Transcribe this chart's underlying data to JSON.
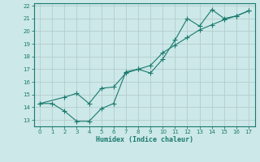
{
  "line1_x": [
    0,
    1,
    2,
    3,
    4,
    5,
    6,
    7,
    8,
    9,
    10,
    11,
    12,
    13,
    14,
    15,
    16,
    17
  ],
  "line1_y": [
    14.3,
    14.3,
    13.7,
    12.9,
    12.9,
    13.9,
    14.3,
    16.8,
    17.0,
    16.7,
    17.8,
    19.3,
    21.0,
    20.4,
    21.7,
    21.0,
    21.2,
    21.6
  ],
  "line2_x": [
    0,
    2,
    3,
    4,
    5,
    6,
    7,
    8,
    9,
    10,
    11,
    12,
    13,
    14,
    15,
    16,
    17
  ],
  "line2_y": [
    14.3,
    14.8,
    15.1,
    14.3,
    15.5,
    15.6,
    16.7,
    17.0,
    17.3,
    18.3,
    18.9,
    19.5,
    20.1,
    20.5,
    20.9,
    21.2,
    21.6
  ],
  "line_color": "#1a7a6e",
  "markersize": 2.5,
  "xlabel": "Humidex (Indice chaleur)",
  "xlim": [
    -0.5,
    17.5
  ],
  "ylim": [
    12.5,
    22.2
  ],
  "yticks": [
    13,
    14,
    15,
    16,
    17,
    18,
    19,
    20,
    21,
    22
  ],
  "xticks": [
    0,
    1,
    2,
    3,
    4,
    5,
    6,
    7,
    8,
    9,
    10,
    11,
    12,
    13,
    14,
    15,
    16,
    17
  ],
  "bg_color": "#cce8e8",
  "grid_color": "#b0c8c8"
}
